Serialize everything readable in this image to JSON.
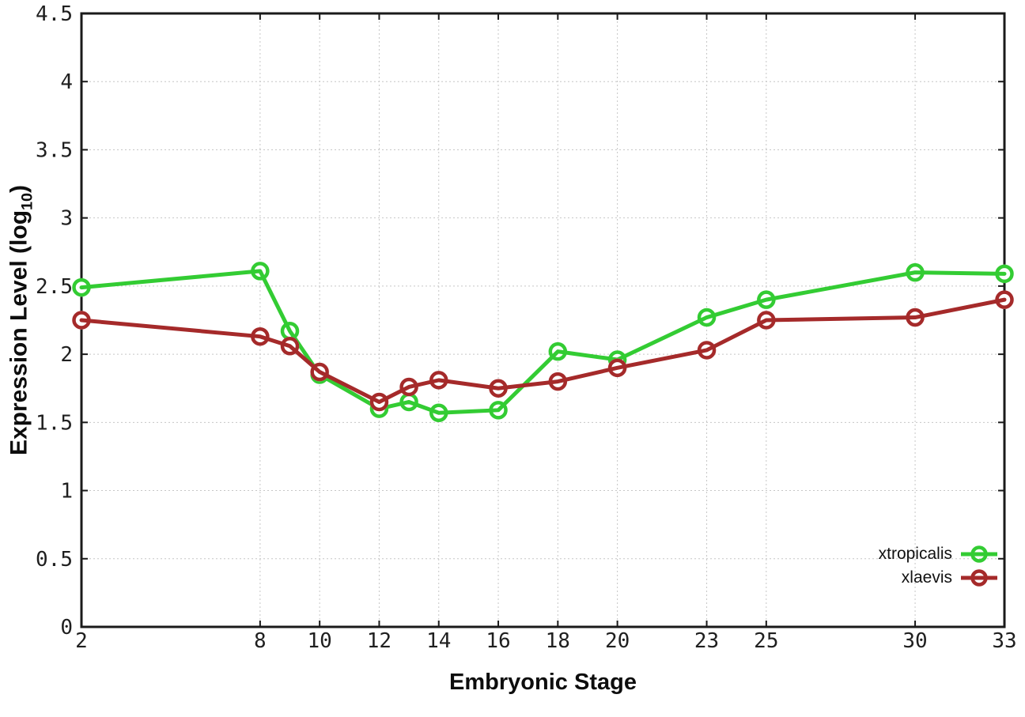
{
  "chart_data": {
    "type": "line",
    "title": "",
    "xlabel": "Embryonic Stage",
    "ylabel": "Expression Level (log10)",
    "ylabel_parts": {
      "pre": "Expression Level (log",
      "sub": "10",
      "post": ")"
    },
    "xlim": [
      2,
      33
    ],
    "ylim": [
      0,
      4.5
    ],
    "grid": true,
    "grid_style": "dotted",
    "legend_position": "inside-bottom-right",
    "marker": "open-circle",
    "x_ticks": [
      {
        "v": 2,
        "label": "2"
      },
      {
        "v": 8,
        "label": "8"
      },
      {
        "v": 10,
        "label": "10"
      },
      {
        "v": 12,
        "label": "12"
      },
      {
        "v": 14,
        "label": "14"
      },
      {
        "v": 16,
        "label": "16"
      },
      {
        "v": 18,
        "label": "18"
      },
      {
        "v": 20,
        "label": "20"
      },
      {
        "v": 23,
        "label": "23"
      },
      {
        "v": 25,
        "label": "25"
      },
      {
        "v": 30,
        "label": "30"
      },
      {
        "v": 33,
        "label": "33"
      }
    ],
    "y_ticks": [
      {
        "v": 0,
        "label": "0"
      },
      {
        "v": 0.5,
        "label": "0.5"
      },
      {
        "v": 1,
        "label": "1"
      },
      {
        "v": 1.5,
        "label": "1.5"
      },
      {
        "v": 2,
        "label": "2"
      },
      {
        "v": 2.5,
        "label": "2.5"
      },
      {
        "v": 3,
        "label": "3"
      },
      {
        "v": 3.5,
        "label": "3.5"
      },
      {
        "v": 4,
        "label": "4"
      },
      {
        "v": 4.5,
        "label": "4.5"
      }
    ],
    "x": [
      2,
      8,
      9,
      10,
      12,
      13,
      14,
      16,
      18,
      20,
      23,
      25,
      30,
      33
    ],
    "series": [
      {
        "name": "xtropicalis",
        "color": "#33cc33",
        "values": [
          2.49,
          2.61,
          2.17,
          1.85,
          1.6,
          1.65,
          1.57,
          1.59,
          2.02,
          1.96,
          2.27,
          2.4,
          2.6,
          2.59
        ]
      },
      {
        "name": "xlaevis",
        "color": "#a52a2a",
        "values": [
          2.25,
          2.13,
          2.06,
          1.87,
          1.65,
          1.76,
          1.81,
          1.75,
          1.8,
          1.9,
          2.03,
          2.25,
          2.27,
          2.4
        ]
      }
    ]
  }
}
